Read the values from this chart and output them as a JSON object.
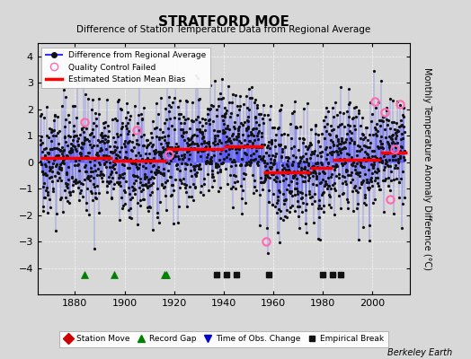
{
  "title": "STRATFORD MOE",
  "subtitle": "Difference of Station Temperature Data from Regional Average",
  "ylabel": "Monthly Temperature Anomaly Difference (°C)",
  "xlim": [
    1865,
    2015
  ],
  "ylim": [
    -5,
    4.5
  ],
  "yticks": [
    -4,
    -3,
    -2,
    -1,
    0,
    1,
    2,
    3,
    4
  ],
  "xticks": [
    1880,
    1900,
    1920,
    1940,
    1960,
    1980,
    2000
  ],
  "background_color": "#d8d8d8",
  "plot_bg_color": "#d8d8d8",
  "seed": 42,
  "start_year": 1866,
  "end_year": 2013,
  "segments": [
    {
      "start": 1866,
      "end": 1895,
      "bias": 0.15
    },
    {
      "start": 1895,
      "end": 1917,
      "bias": 0.05
    },
    {
      "start": 1917,
      "end": 1940,
      "bias": 0.5
    },
    {
      "start": 1940,
      "end": 1956,
      "bias": 0.6
    },
    {
      "start": 1956,
      "end": 1975,
      "bias": -0.4
    },
    {
      "start": 1975,
      "end": 1984,
      "bias": -0.2
    },
    {
      "start": 1984,
      "end": 2003,
      "bias": 0.1
    },
    {
      "start": 2003,
      "end": 2014,
      "bias": 0.35
    }
  ],
  "record_gaps": [
    1884,
    1896,
    1916,
    1917
  ],
  "empirical_breaks": [
    1937,
    1941,
    1945,
    1958,
    1980,
    1984,
    1987
  ],
  "qc_failed_approx": [
    [
      1884,
      1.5
    ],
    [
      1905,
      1.2
    ],
    [
      1918,
      0.3
    ],
    [
      1957,
      -3.0
    ],
    [
      2001,
      2.3
    ],
    [
      2005,
      1.9
    ],
    [
      2007,
      -1.4
    ],
    [
      2009,
      0.5
    ],
    [
      2011,
      2.2
    ]
  ],
  "line_color": "#3333ff",
  "dot_color": "#111111",
  "bias_line_color": "#ff0000",
  "qc_color": "#ff69b4",
  "record_gap_color": "#008000",
  "empirical_break_color": "#111111",
  "station_move_color": "#cc0000",
  "obs_change_color": "#0000cc",
  "marker_y": -4.25,
  "noise_std": 1.05
}
